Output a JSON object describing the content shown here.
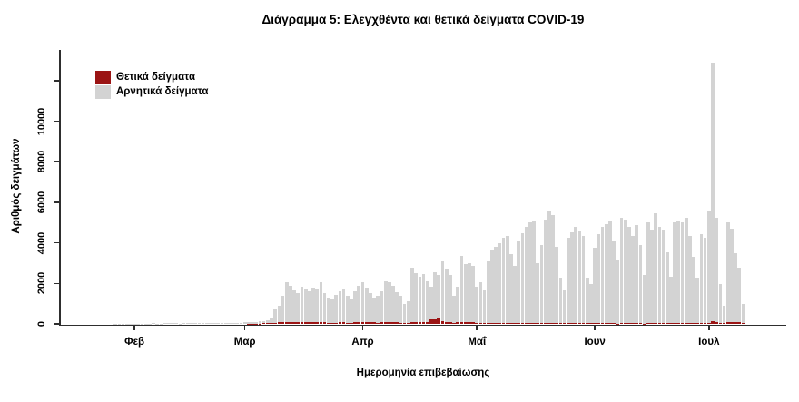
{
  "title": "Διάγραμμα 5: Ελεγχθέντα και θετικά δείγματα COVID-19",
  "legend": {
    "items": [
      {
        "label": "Θετικά δείγματα",
        "color": "#9b1414"
      },
      {
        "label": "Αρνητικά δείγματα",
        "color": "#d3d3d3"
      }
    ]
  },
  "axes": {
    "ylabel": "Αριθμός δειγμάτων",
    "xlabel": "Ημερομηνία επιβεβαίωσης",
    "ytick_values": [
      0,
      2000,
      4000,
      6000,
      8000,
      10000,
      12000
    ],
    "ytick_labels": [
      "0",
      "2000",
      "4000",
      "6000",
      "8000",
      "10000",
      ""
    ],
    "xticks": [
      {
        "label": "Φεβ",
        "date": "2020-02-01"
      },
      {
        "label": "Μαρ",
        "date": "2020-03-01"
      },
      {
        "label": "Απρ",
        "date": "2020-04-01"
      },
      {
        "label": "Μαΐ",
        "date": "2020-05-01"
      },
      {
        "label": "Ιουν",
        "date": "2020-06-01"
      },
      {
        "label": "Ιουλ",
        "date": "2020-07-01"
      }
    ]
  },
  "chart_data": {
    "type": "bar",
    "stacked": true,
    "title": "Διάγραμμα 5: Ελεγχθέντα και θετικά δείγματα COVID-19",
    "xlabel": "Ημερομηνία επιβεβαίωσης",
    "ylabel": "Αριθμός δειγμάτων",
    "ylim": [
      0,
      13500
    ],
    "grid": false,
    "legend_position": "top-left-inside",
    "x_start_date": "2020-01-20",
    "x_frequency": "daily",
    "x_end_date": "2020-07-10",
    "series": [
      {
        "name": "Θετικά δείγματα",
        "color": "#9b1414",
        "values": [
          0,
          0,
          0,
          0,
          0,
          0,
          0,
          0,
          0,
          0,
          0,
          0,
          0,
          0,
          0,
          0,
          0,
          0,
          0,
          0,
          0,
          0,
          0,
          0,
          0,
          0,
          0,
          0,
          0,
          0,
          0,
          0,
          0,
          0,
          0,
          0,
          0,
          1,
          2,
          1,
          3,
          5,
          10,
          10,
          15,
          20,
          30,
          35,
          45,
          60,
          75,
          90,
          105,
          95,
          85,
          80,
          90,
          85,
          80,
          85,
          75,
          95,
          70,
          60,
          55,
          65,
          70,
          75,
          60,
          55,
          70,
          80,
          90,
          85,
          80,
          70,
          65,
          70,
          85,
          80,
          75,
          70,
          65,
          55,
          60,
          95,
          90,
          85,
          90,
          110,
          230,
          280,
          320,
          150,
          110,
          90,
          60,
          70,
          90,
          80,
          75,
          70,
          55,
          50,
          45,
          60,
          65,
          60,
          55,
          50,
          45,
          40,
          35,
          50,
          55,
          50,
          45,
          40,
          30,
          45,
          50,
          55,
          50,
          40,
          30,
          25,
          45,
          50,
          55,
          50,
          45,
          30,
          25,
          30,
          35,
          40,
          35,
          30,
          25,
          20,
          40,
          45,
          40,
          35,
          30,
          25,
          20,
          35,
          40,
          45,
          40,
          35,
          30,
          25,
          45,
          50,
          45,
          50,
          40,
          35,
          30,
          50,
          55,
          60,
          120,
          80,
          50,
          40,
          90,
          100,
          80,
          70,
          40
        ]
      },
      {
        "name": "Αρνητικά δείγματα",
        "color": "#d3d3d3",
        "values": [
          2,
          3,
          3,
          4,
          5,
          5,
          5,
          8,
          10,
          12,
          10,
          15,
          15,
          18,
          20,
          16,
          22,
          25,
          20,
          18,
          24,
          28,
          30,
          26,
          22,
          32,
          35,
          30,
          28,
          36,
          40,
          38,
          32,
          32,
          45,
          50,
          48,
          41,
          53,
          59,
          55,
          65,
          75,
          85,
          95,
          110,
          120,
          125,
          255,
          640,
          825,
          1280,
          1935,
          1805,
          1585,
          1420,
          1730,
          1665,
          1520,
          1715,
          1625,
          1945,
          1430,
          1240,
          1165,
          1385,
          1530,
          1625,
          1340,
          1145,
          1530,
          1820,
          1950,
          1715,
          1440,
          1230,
          1305,
          1530,
          2025,
          1970,
          1825,
          1500,
          1335,
          942,
          1040,
          2685,
          2410,
          2255,
          2390,
          1990,
          1585,
          2280,
          2080,
          2930,
          2598,
          2320,
          1309,
          1745,
          3288,
          2851,
          2930,
          2787,
          1760,
          1988,
          1621,
          3020,
          3610,
          3764,
          3918,
          4220,
          4300,
          3413,
          2822,
          4000,
          4439,
          4750,
          4969,
          5048,
          2975,
          3853,
          5113,
          5510,
          5300,
          3784,
          2230,
          1642,
          4225,
          4450,
          4735,
          4518,
          4300,
          2230,
          1939,
          3720,
          4385,
          4750,
          4865,
          5060,
          4025,
          3135,
          5200,
          5118,
          4750,
          4310,
          4835,
          3875,
          2390,
          4979,
          4600,
          5415,
          4750,
          4605,
          3497,
          2311,
          4969,
          5038,
          4969,
          5190,
          4305,
          3269,
          2231,
          4370,
          4215,
          5540,
          12780,
          5160,
          1910,
          860,
          4925,
          4600,
          3420,
          2710,
          945
        ]
      }
    ]
  }
}
